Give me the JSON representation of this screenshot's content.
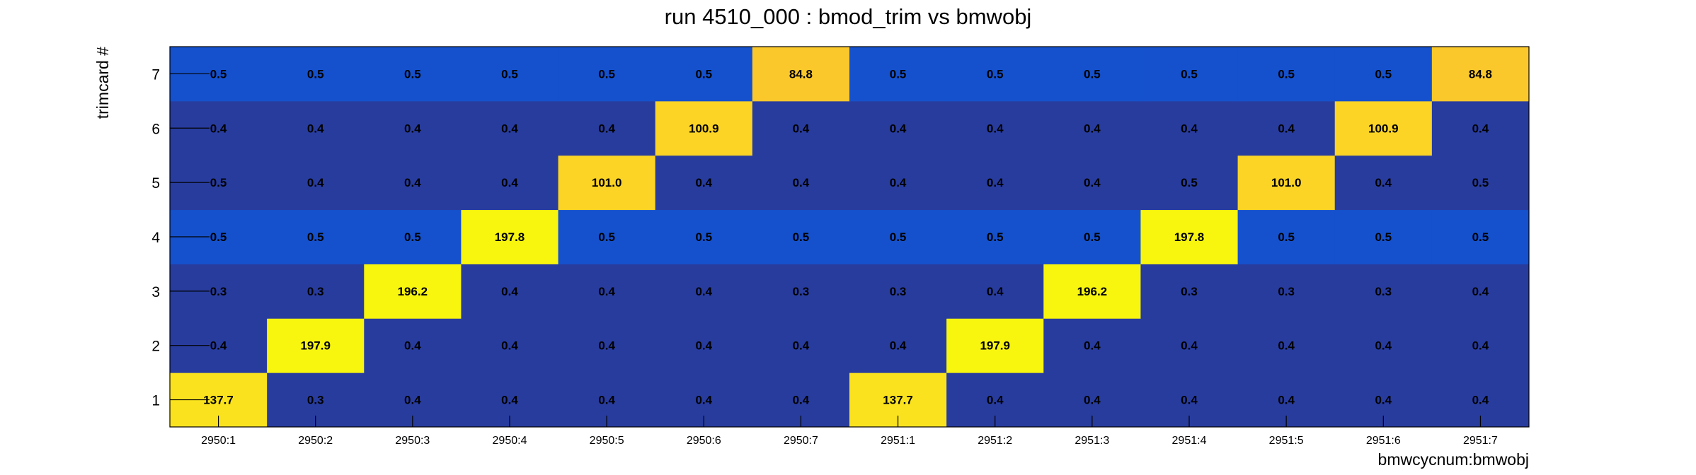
{
  "chart_data": {
    "type": "heatmap",
    "title": "run 4510_000 : bmod_trim vs bmwobj",
    "xlabel": "bmwcycnum:bmwobj",
    "ylabel": "trimcard #",
    "x_categories": [
      "2950:1",
      "2950:2",
      "2950:3",
      "2950:4",
      "2950:5",
      "2950:6",
      "2950:7",
      "2951:1",
      "2951:2",
      "2951:3",
      "2951:4",
      "2951:5",
      "2951:6",
      "2951:7"
    ],
    "y_categories": [
      "1",
      "2",
      "3",
      "4",
      "5",
      "6",
      "7"
    ],
    "values": [
      [
        137.7,
        0.3,
        0.4,
        0.4,
        0.4,
        0.4,
        0.4,
        137.7,
        0.4,
        0.4,
        0.4,
        0.4,
        0.4,
        0.4
      ],
      [
        0.4,
        197.9,
        0.4,
        0.4,
        0.4,
        0.4,
        0.4,
        0.4,
        197.9,
        0.4,
        0.4,
        0.4,
        0.4,
        0.4
      ],
      [
        0.3,
        0.3,
        196.2,
        0.4,
        0.4,
        0.4,
        0.3,
        0.3,
        0.4,
        196.2,
        0.3,
        0.3,
        0.3,
        0.4
      ],
      [
        0.5,
        0.5,
        0.5,
        197.8,
        0.5,
        0.5,
        0.5,
        0.5,
        0.5,
        0.5,
        197.8,
        0.5,
        0.5,
        0.5
      ],
      [
        0.5,
        0.4,
        0.4,
        0.4,
        101.0,
        0.4,
        0.4,
        0.4,
        0.4,
        0.4,
        0.5,
        101.0,
        0.4,
        0.5
      ],
      [
        0.4,
        0.4,
        0.4,
        0.4,
        0.4,
        100.9,
        0.4,
        0.4,
        0.4,
        0.4,
        0.4,
        0.4,
        100.9,
        0.4
      ],
      [
        0.5,
        0.5,
        0.5,
        0.5,
        0.5,
        0.5,
        84.8,
        0.5,
        0.5,
        0.5,
        0.5,
        0.5,
        0.5,
        84.8
      ]
    ],
    "row_colors": [
      "#283c9e",
      "#283c9e",
      "#283c9e",
      "#1551cc",
      "#283c9e",
      "#283c9e",
      "#1551cc"
    ],
    "high_colors": {
      "gt190": "#f8f50f",
      "gt120": "#fae31e",
      "gt95": "#fbd425",
      "gt80": "#fbc82c"
    },
    "grid": false,
    "legend": "none"
  }
}
